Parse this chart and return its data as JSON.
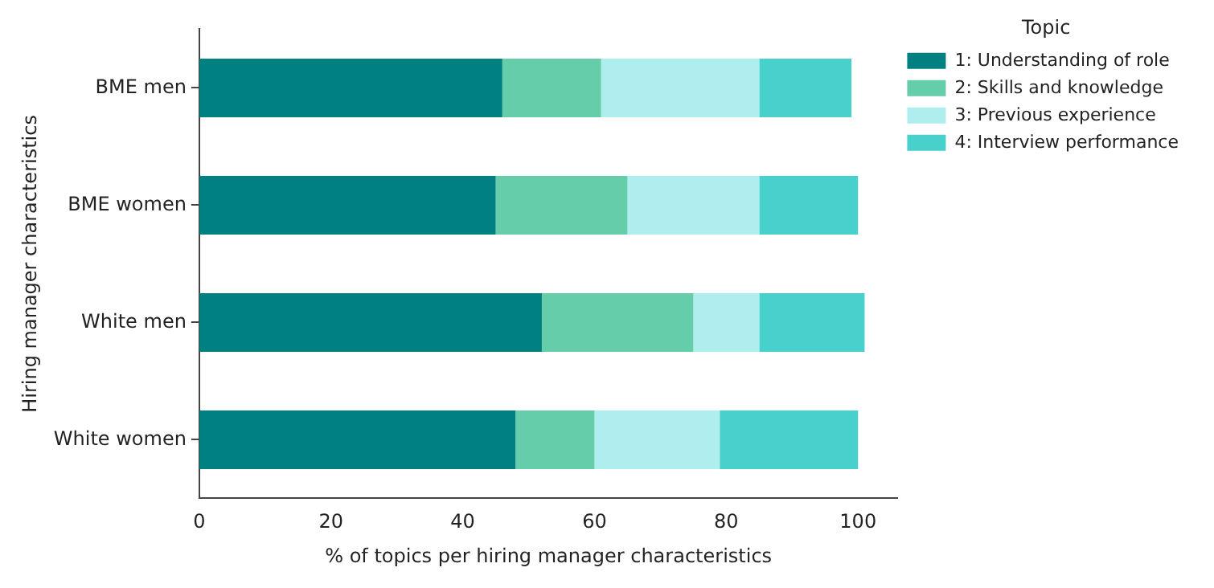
{
  "chart_data": {
    "type": "bar",
    "orientation": "horizontal",
    "stacked": true,
    "xlabel": "% of topics per hiring manager characteristics",
    "ylabel": "Hiring manager characteristics",
    "legend_title": "Topic",
    "legend": "top right",
    "grid": false,
    "categories": [
      "BME men",
      "BME women",
      "White men",
      "White women"
    ],
    "series": [
      {
        "name": "1: Understanding of role",
        "color": "#008080",
        "values": [
          46,
          45,
          52,
          48
        ]
      },
      {
        "name": "2: Skills and knowledge",
        "color": "#66cdaa",
        "values": [
          15,
          20,
          23,
          12
        ]
      },
      {
        "name": "3: Previous experience",
        "color": "#afeeee",
        "values": [
          24,
          20,
          10,
          19
        ]
      },
      {
        "name": "4: Interview performance",
        "color": "#48d1cc",
        "values": [
          14,
          15,
          16,
          21
        ]
      }
    ],
    "xlim": [
      0,
      106
    ],
    "xticks": [
      0,
      20,
      40,
      60,
      80,
      100
    ]
  }
}
